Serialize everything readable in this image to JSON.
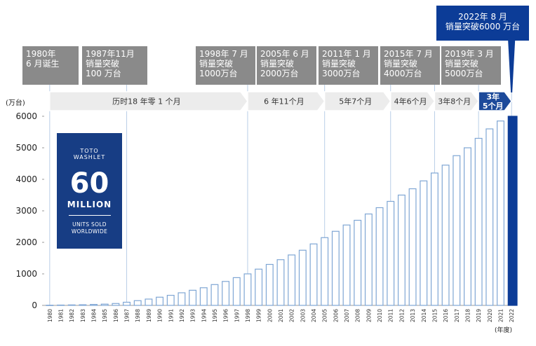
{
  "chart_data": {
    "type": "bar",
    "unit_label": "(万台)",
    "x_unit_label": "(年度)",
    "ylim": [
      0,
      6000
    ],
    "yticks": [
      "0",
      "1000",
      "2000",
      "3000",
      "4000",
      "5000",
      "6000"
    ],
    "categories": [
      "1980",
      "1981",
      "1982",
      "1983",
      "1984",
      "1985",
      "1986",
      "1987",
      "1988",
      "1989",
      "1990",
      "1991",
      "1992",
      "1993",
      "1994",
      "1995",
      "1996",
      "1997",
      "1998",
      "1999",
      "2000",
      "2001",
      "2002",
      "2003",
      "2004",
      "2005",
      "2006",
      "2007",
      "2008",
      "2009",
      "2010",
      "2011",
      "2012",
      "2013",
      "2014",
      "2015",
      "2016",
      "2017",
      "2018",
      "2019",
      "2020",
      "2021",
      "2022"
    ],
    "values": [
      5,
      10,
      15,
      20,
      30,
      40,
      60,
      100,
      150,
      200,
      260,
      320,
      400,
      480,
      560,
      660,
      760,
      880,
      1000,
      1150,
      1300,
      1450,
      1600,
      1750,
      1950,
      2150,
      2350,
      2550,
      2700,
      2900,
      3100,
      3300,
      3500,
      3700,
      3950,
      4200,
      4450,
      4750,
      5000,
      5300,
      5600,
      5850,
      6000
    ],
    "highlight_index": 42,
    "colors": {
      "bar_fill": "#ffffff",
      "bar_stroke": "#7fa6d4",
      "highlight": "#0c3c97",
      "arrow": "#ececec",
      "arrow_dark": "#1d4a9a",
      "callout": "#8a8a8a"
    },
    "callouts": [
      {
        "lines": [
          "1980年",
          "6 月诞生"
        ]
      },
      {
        "lines": [
          "1987年11月",
          "销量突破",
          "100 万台"
        ]
      },
      {
        "lines": [
          "1998年 7 月",
          "销量突破",
          "1000万台"
        ]
      },
      {
        "lines": [
          "2005年 6 月",
          "销量突破",
          "2000万台"
        ]
      },
      {
        "lines": [
          "2011年 1 月",
          "销量突破",
          "3000万台"
        ]
      },
      {
        "lines": [
          "2015年 7 月",
          "销量突破",
          "4000万台"
        ]
      },
      {
        "lines": [
          "2019年 3 月",
          "销量突破",
          "5000万台"
        ]
      },
      {
        "lines": [
          "2022年 8 月",
          "销量突破6000 万台"
        ]
      }
    ],
    "durations": [
      {
        "label": "历时18 年零 1 个月"
      },
      {
        "label": "6 年11个月"
      },
      {
        "label": "5年7个月"
      },
      {
        "label": "4年6个月"
      },
      {
        "label": "3年8个月"
      },
      {
        "label": "3年\n5个月"
      }
    ]
  },
  "logo": {
    "brand_line1": "TOTO",
    "brand_line2": "WASHLET",
    "big_number": "60",
    "million": "MILLION",
    "units_line1": "UNITS SOLD",
    "units_line2": "WORLDWIDE"
  }
}
